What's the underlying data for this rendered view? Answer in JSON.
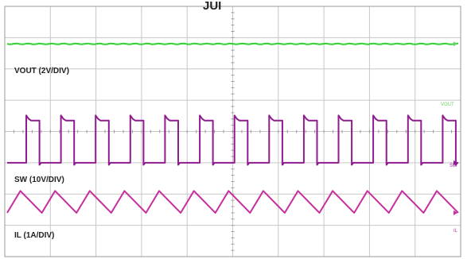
{
  "header": {
    "title_fragment": "JUI"
  },
  "chart_data": {
    "type": "line",
    "title": "",
    "xlabel": "",
    "ylabel": "",
    "grid": true,
    "divisions": {
      "x": 10,
      "y": 8
    },
    "series": [
      {
        "name": "VOUT (2V/DIV)",
        "marker": "VOUT",
        "color": "#2fd12f",
        "shape": "dc",
        "level_div": 2.8
      },
      {
        "name": "SW (10V/DIV)",
        "marker": "SW",
        "color": "#8e1c8e",
        "shape": "square",
        "pulses": 13,
        "duty": 0.38,
        "low_div": -1.0,
        "high_div": 0.35
      },
      {
        "name": "IL (1A/DIV)",
        "marker": "IL",
        "color": "#c72e9e",
        "shape": "triangle",
        "cycles": 13,
        "rise_fraction": 0.38,
        "min_div": -2.6,
        "max_div": -1.9
      }
    ]
  },
  "colors": {
    "background": "#ffffff",
    "grid": "#c7c7c7",
    "frame": "#9a9a9a",
    "label": "#222222",
    "marker_vout": "#6bd06b",
    "marker_sw": "#8e1c8e",
    "marker_il": "#c72e9e"
  }
}
